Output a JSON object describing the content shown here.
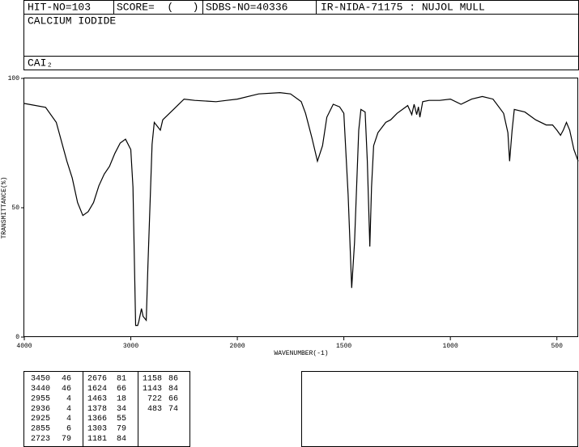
{
  "header": {
    "hit": "HIT-NO=103",
    "score": "SCORE=  (   )",
    "sdbs": "SDBS-NO=40336",
    "method": "IR-NIDA-71175 : NUJOL MULL",
    "name": "CALCIUM IODIDE",
    "formula": "CAI₂"
  },
  "chart_data": {
    "type": "line",
    "xlabel": "WAVENUMBER(-1)",
    "ylabel": "TRANSMITTANCE(%)",
    "color": "#000000",
    "x": [
      4000,
      3800,
      3700,
      3600,
      3550,
      3500,
      3450,
      3400,
      3350,
      3300,
      3250,
      3200,
      3150,
      3100,
      3050,
      3000,
      2980,
      2955,
      2936,
      2925,
      2900,
      2885,
      2855,
      2840,
      2800,
      2780,
      2723,
      2700,
      2650,
      2600,
      2500,
      2400,
      2200,
      2100,
      2000,
      1900,
      1800,
      1750,
      1700,
      1680,
      1650,
      1624,
      1600,
      1580,
      1550,
      1520,
      1500,
      1480,
      1463,
      1450,
      1430,
      1420,
      1400,
      1390,
      1378,
      1370,
      1360,
      1340,
      1303,
      1280,
      1250,
      1200,
      1181,
      1170,
      1158,
      1150,
      1143,
      1130,
      1100,
      1050,
      1000,
      950,
      900,
      850,
      800,
      750,
      730,
      722,
      710,
      700,
      650,
      600,
      550,
      520,
      500,
      483,
      470,
      455,
      440,
      420,
      400
    ],
    "values": [
      90.3,
      88.8,
      83,
      68,
      61.5,
      52,
      47,
      48.5,
      52,
      58.5,
      63,
      66,
      71,
      75,
      76.5,
      72.5,
      58,
      4.5,
      4.5,
      6,
      11,
      8,
      6.5,
      27,
      74.5,
      83,
      80,
      84,
      86,
      88,
      92,
      91.5,
      91,
      91.5,
      92,
      94,
      94.5,
      94,
      91,
      86.5,
      77,
      68,
      74,
      85,
      90,
      89,
      86.5,
      55,
      19,
      36.5,
      80,
      88,
      87,
      68,
      35,
      58,
      74,
      79,
      83,
      84,
      86.5,
      89.5,
      86,
      90,
      86,
      89,
      85,
      91,
      91.5,
      91.5,
      92,
      90,
      92,
      93,
      92,
      86.5,
      79,
      68,
      80,
      88,
      87,
      84,
      82,
      82,
      80,
      78,
      80,
      83,
      80,
      72.5,
      68
    ],
    "xlim": [
      4000,
      400
    ],
    "xticks": [
      4000,
      3000,
      2000,
      1500,
      1000,
      500
    ],
    "ylim": [
      0,
      100
    ],
    "yticks": [
      0,
      50,
      100
    ]
  },
  "peak_table": [
    [
      [
        3450,
        46
      ],
      [
        3440,
        46
      ],
      [
        2955,
        4
      ],
      [
        2936,
        4
      ],
      [
        2925,
        4
      ],
      [
        2855,
        6
      ],
      [
        2723,
        79
      ]
    ],
    [
      [
        2676,
        81
      ],
      [
        1624,
        66
      ],
      [
        1463,
        18
      ],
      [
        1378,
        34
      ],
      [
        1366,
        55
      ],
      [
        1303,
        79
      ],
      [
        1181,
        84
      ]
    ],
    [
      [
        1158,
        86
      ],
      [
        1143,
        84
      ],
      [
        722,
        66
      ],
      [
        483,
        74
      ]
    ]
  ]
}
